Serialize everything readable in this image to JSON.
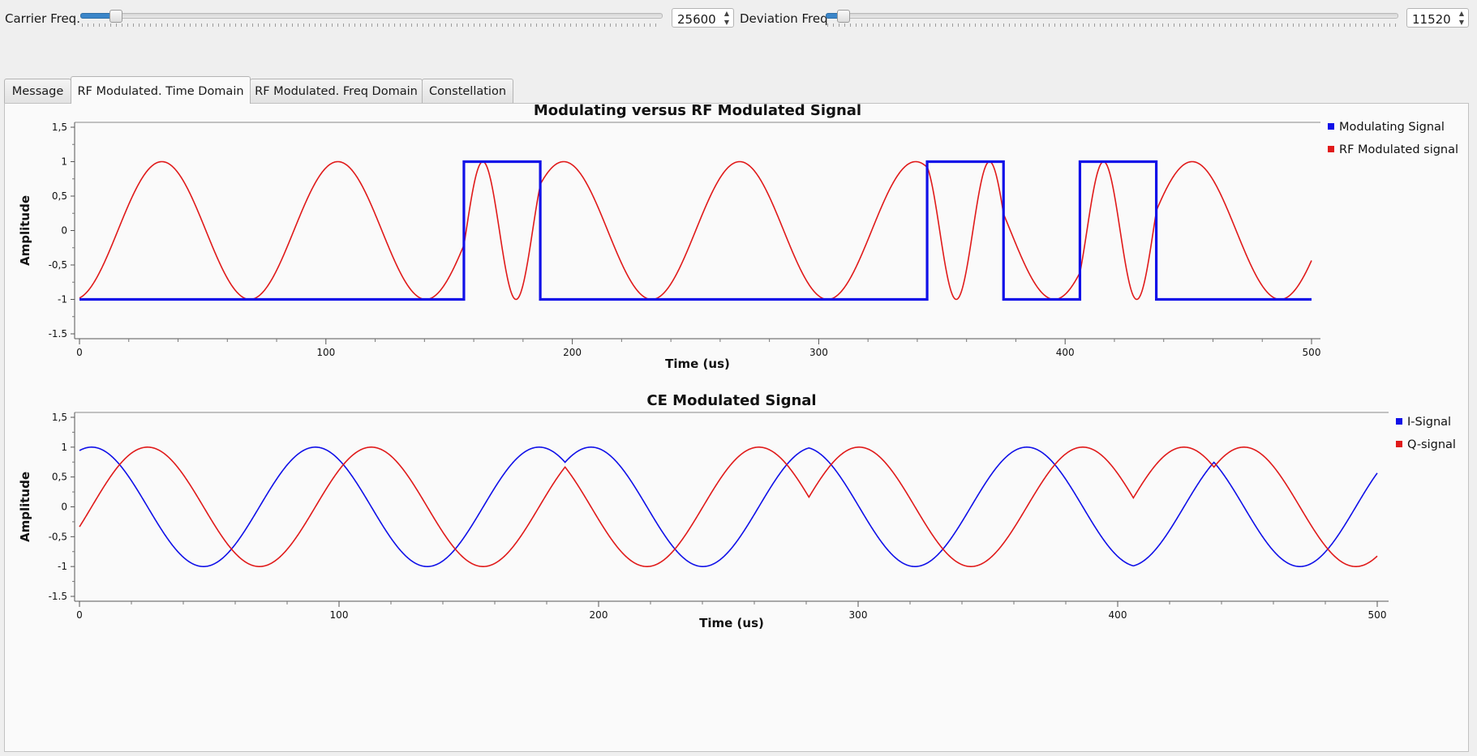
{
  "controls": {
    "carrier": {
      "label": "Carrier Freq.",
      "value": "25600",
      "position": 0.06
    },
    "deviation": {
      "label": "Deviation Freq",
      "value": "11520",
      "position": 0.03
    }
  },
  "tabs": [
    {
      "label": "Message",
      "active": false
    },
    {
      "label": "RF Modulated. Time Domain",
      "active": true
    },
    {
      "label": "RF Modulated. Freq Domain",
      "active": false
    },
    {
      "label": "Constellation",
      "active": false
    }
  ],
  "chart_data": [
    {
      "type": "line",
      "title": "Modulating versus RF Modulated Signal",
      "xlabel": "Time (us)",
      "ylabel": "Amplitude",
      "xlim": [
        0,
        500
      ],
      "ylim": [
        -1.5,
        1.5
      ],
      "xticks": [
        "0",
        "100",
        "200",
        "300",
        "400",
        "500"
      ],
      "yticks": [
        "1,5",
        "1",
        "0,5",
        "0",
        "-0,5",
        "-1",
        "-1.5"
      ],
      "legend_position": "right",
      "bits": [
        {
          "from": 0,
          "to": 156,
          "level": -1
        },
        {
          "from": 156,
          "to": 187,
          "level": 1
        },
        {
          "from": 187,
          "to": 344,
          "level": -1
        },
        {
          "from": 344,
          "to": 375,
          "level": 1
        },
        {
          "from": 375,
          "to": 406,
          "level": -1
        },
        {
          "from": 406,
          "to": 437,
          "level": 1
        },
        {
          "from": 437,
          "to": 500,
          "level": -1
        }
      ],
      "f_low_mhz": 0.014,
      "f_high_mhz": 0.0371,
      "start_phase": -1.37,
      "series": [
        {
          "name": "Modulating Signal",
          "color": "#1010e8"
        },
        {
          "name": "RF Modulated signal",
          "color": "#e01a1a"
        }
      ]
    },
    {
      "type": "line",
      "title": "CE Modulated Signal",
      "xlabel": "Time (us)",
      "ylabel": "Amplitude",
      "xlim": [
        0,
        500
      ],
      "ylim": [
        -1.5,
        1.5
      ],
      "xticks": [
        "0",
        "100",
        "200",
        "300",
        "400",
        "500"
      ],
      "yticks": [
        "1,5",
        "1",
        "0,5",
        "0",
        "-0,5",
        "-1",
        "-1.5"
      ],
      "legend_position": "right",
      "bits": [
        {
          "from": 0,
          "to": 187,
          "level": -1
        },
        {
          "from": 187,
          "to": 281,
          "level": 1
        },
        {
          "from": 281,
          "to": 406,
          "level": -1
        },
        {
          "from": 406,
          "to": 437,
          "level": 1
        },
        {
          "from": 437,
          "to": 500,
          "level": -1
        }
      ],
      "f_low_mhz": 0.0116,
      "f_high_mhz": 0.0116,
      "start_phase": 1.23,
      "series": [
        {
          "name": "I-Signal",
          "color": "#1010e8"
        },
        {
          "name": "Q-signal",
          "color": "#e01a1a"
        }
      ]
    }
  ]
}
